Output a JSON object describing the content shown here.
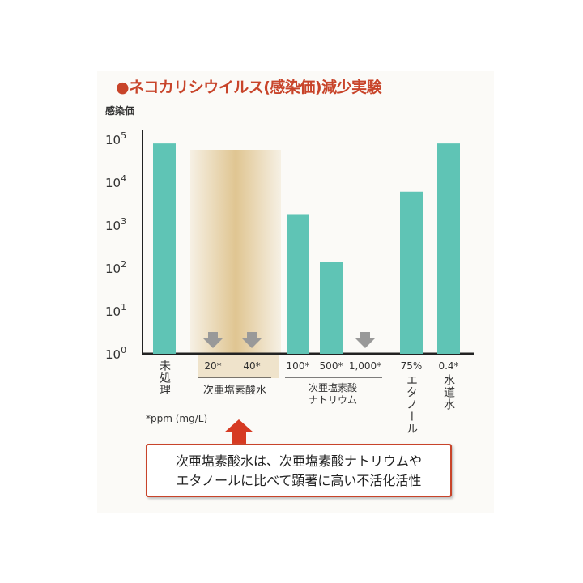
{
  "chart_data": {
    "type": "bar",
    "title": "●ネコカリシウイルス(感染価)減少実験",
    "ylabel": "感染価",
    "yscale": "log",
    "ylim": [
      1,
      100000
    ],
    "ytick_labels": [
      [
        "10",
        "0"
      ],
      [
        "10",
        "1"
      ],
      [
        "10",
        "2"
      ],
      [
        "10",
        "3"
      ],
      [
        "10",
        "4"
      ],
      [
        "10",
        "5"
      ]
    ],
    "categories": [
      "未処理",
      "20*",
      "40*",
      "100*",
      "500*",
      "1,000*",
      "75%",
      "0.4*"
    ],
    "values": [
      80000,
      null,
      null,
      1800,
      140,
      null,
      6000,
      80000
    ],
    "below_detection": [
      "20*",
      "40*",
      "1,000*"
    ],
    "groups": [
      {
        "label": "未処理",
        "vertical": true
      },
      {
        "label": "次亜塩素酸水",
        "members": [
          "20*",
          "40*"
        ],
        "highlighted": true
      },
      {
        "label": "次亜塩素酸\nナトリウム",
        "line1": "次亜塩素酸",
        "line2": "ナトリウム",
        "members": [
          "100*",
          "500*",
          "1,000*"
        ]
      },
      {
        "label": "エタノール",
        "members": [
          "75%"
        ],
        "vertical": true
      },
      {
        "label": "水道水",
        "members": [
          "0.4*"
        ],
        "vertical": true
      }
    ],
    "unit_note": "*ppm (mg/L)",
    "colors": {
      "bar": "#5fc4b5",
      "highlight": "#d9b878",
      "title": "#c8442a",
      "arrow": "#999999",
      "callout": "#c8442a"
    }
  },
  "callout": {
    "line1": "次亜塩素酸水は、次亜塩素酸ナトリウムや",
    "line2": "エタノールに比べて顕著に高い不活化活性"
  }
}
